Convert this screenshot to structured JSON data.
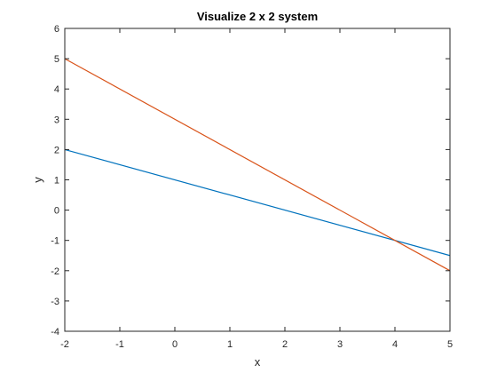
{
  "chart_data": {
    "type": "line",
    "title": "Visualize 2 x 2 system",
    "xlabel": "x",
    "ylabel": "y",
    "xlim": [
      -2,
      5
    ],
    "ylim": [
      -4,
      6
    ],
    "xticks": [
      -2,
      -1,
      0,
      1,
      2,
      3,
      4,
      5
    ],
    "yticks": [
      -4,
      -3,
      -2,
      -1,
      0,
      1,
      2,
      3,
      4,
      5,
      6
    ],
    "grid": false,
    "series": [
      {
        "x": [
          -2,
          5
        ],
        "y": [
          2,
          -1.5
        ],
        "color": "#0072BD"
      },
      {
        "x": [
          -2,
          5
        ],
        "y": [
          5,
          -2
        ],
        "color": "#D95319"
      }
    ]
  }
}
